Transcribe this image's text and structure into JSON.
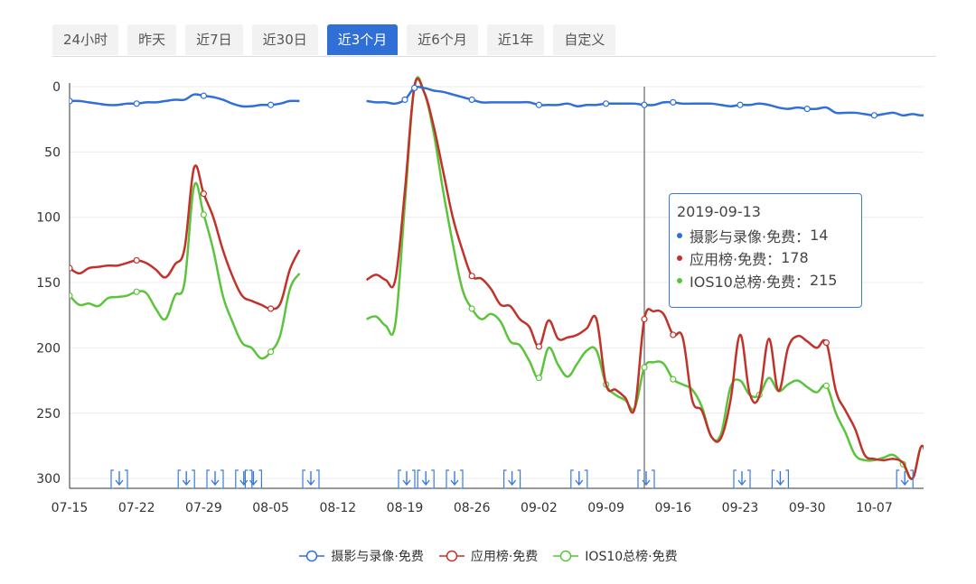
{
  "tabs": [
    {
      "label": "24小时",
      "active": false
    },
    {
      "label": "昨天",
      "active": false
    },
    {
      "label": "近7日",
      "active": false
    },
    {
      "label": "近30日",
      "active": false
    },
    {
      "label": "近3个月",
      "active": true
    },
    {
      "label": "近6个月",
      "active": false
    },
    {
      "label": "近1年",
      "active": false
    },
    {
      "label": "自定义",
      "active": false
    }
  ],
  "tooltip": {
    "date": "2019-09-13",
    "rows": [
      {
        "name": "摄影与录像·免费",
        "sep": "： ",
        "value": "14",
        "color": "#2f6fd6"
      },
      {
        "name": "应用榜·免费",
        "sep": "： ",
        "value": "178",
        "color": "#c1322b"
      },
      {
        "name": "IOS10总榜·免费",
        "sep": "： ",
        "value": "215",
        "color": "#5cc43c"
      }
    ]
  },
  "legend": [
    {
      "label": "摄影与录像·免费",
      "color": "#2f6fd6"
    },
    {
      "label": "应用榜·免费",
      "color": "#c1322b"
    },
    {
      "label": "IOS10总榜·免费",
      "color": "#5cc43c"
    }
  ],
  "chart_data": {
    "type": "line",
    "title": "",
    "xlabel": "",
    "ylabel": "",
    "y_inverted": true,
    "ylim": [
      0,
      307
    ],
    "yticks": [
      0,
      50,
      100,
      150,
      200,
      250,
      300
    ],
    "grid": true,
    "legend_position": "bottom",
    "x_tick_labels": [
      "07-15",
      "07-22",
      "07-29",
      "08-05",
      "08-12",
      "08-19",
      "08-26",
      "09-02",
      "09-09",
      "09-16",
      "09-23",
      "09-30",
      "10-07"
    ],
    "x_start": "07-15",
    "x_days": 91,
    "crosshair_day": 60,
    "update_marker_days": [
      5,
      12,
      15,
      18,
      19,
      25,
      35,
      37,
      40,
      46,
      53,
      60,
      70,
      74,
      87
    ],
    "series": [
      {
        "name": "摄影与录像·免费",
        "color": "#2f6fd6",
        "points": [
          [
            0,
            11
          ],
          [
            1,
            11
          ],
          [
            2,
            12
          ],
          [
            3,
            13
          ],
          [
            4,
            14
          ],
          [
            5,
            14
          ],
          [
            6,
            13
          ],
          [
            7,
            13
          ],
          [
            8,
            12
          ],
          [
            9,
            12
          ],
          [
            10,
            11
          ],
          [
            11,
            10
          ],
          [
            12,
            10
          ],
          [
            13,
            6
          ],
          [
            14,
            7
          ],
          [
            15,
            8
          ],
          [
            16,
            10
          ],
          [
            17,
            13
          ],
          [
            18,
            15
          ],
          [
            19,
            15
          ],
          [
            20,
            14
          ],
          [
            21,
            14
          ],
          [
            22,
            13
          ],
          [
            23,
            11
          ],
          [
            24,
            11
          ],
          [
            31,
            11
          ],
          [
            32,
            12
          ],
          [
            33,
            12
          ],
          [
            34,
            13
          ],
          [
            35,
            10
          ],
          [
            36,
            1
          ],
          [
            37,
            1
          ],
          [
            38,
            3
          ],
          [
            39,
            4
          ],
          [
            40,
            6
          ],
          [
            41,
            8
          ],
          [
            42,
            10
          ],
          [
            43,
            12
          ],
          [
            44,
            12
          ],
          [
            45,
            12
          ],
          [
            46,
            12
          ],
          [
            47,
            12
          ],
          [
            48,
            12
          ],
          [
            49,
            14
          ],
          [
            50,
            14
          ],
          [
            51,
            14
          ],
          [
            52,
            13
          ],
          [
            53,
            15
          ],
          [
            54,
            14
          ],
          [
            55,
            14
          ],
          [
            56,
            13
          ],
          [
            57,
            13
          ],
          [
            58,
            13
          ],
          [
            59,
            13
          ],
          [
            60,
            14
          ],
          [
            61,
            14
          ],
          [
            62,
            12
          ],
          [
            63,
            12
          ],
          [
            64,
            13
          ],
          [
            65,
            13
          ],
          [
            66,
            13
          ],
          [
            67,
            13
          ],
          [
            68,
            14
          ],
          [
            69,
            15
          ],
          [
            70,
            14
          ],
          [
            71,
            14
          ],
          [
            72,
            13
          ],
          [
            73,
            14
          ],
          [
            74,
            16
          ],
          [
            75,
            17
          ],
          [
            76,
            16
          ],
          [
            77,
            17
          ],
          [
            78,
            17
          ],
          [
            79,
            16
          ],
          [
            80,
            20
          ],
          [
            81,
            20
          ],
          [
            82,
            20
          ],
          [
            83,
            21
          ],
          [
            84,
            22
          ],
          [
            85,
            21
          ],
          [
            86,
            20
          ],
          [
            87,
            22
          ],
          [
            88,
            21
          ],
          [
            89,
            22
          ],
          [
            90,
            20
          ],
          [
            91,
            21
          ]
        ],
        "markers": [
          0,
          7,
          14,
          21,
          35,
          36,
          42,
          49,
          56,
          60,
          63,
          70,
          77,
          84
        ]
      },
      {
        "name": "应用榜·免费",
        "color": "#c1322b",
        "points": [
          [
            0,
            139
          ],
          [
            1,
            143
          ],
          [
            2,
            139
          ],
          [
            3,
            138
          ],
          [
            4,
            137
          ],
          [
            5,
            137
          ],
          [
            6,
            135
          ],
          [
            7,
            133
          ],
          [
            8,
            135
          ],
          [
            9,
            140
          ],
          [
            10,
            146
          ],
          [
            11,
            136
          ],
          [
            12,
            124
          ],
          [
            13,
            62
          ],
          [
            14,
            82
          ],
          [
            15,
            100
          ],
          [
            16,
            125
          ],
          [
            17,
            145
          ],
          [
            18,
            160
          ],
          [
            19,
            164
          ],
          [
            20,
            167
          ],
          [
            21,
            170
          ],
          [
            22,
            166
          ],
          [
            23,
            140
          ],
          [
            24,
            125
          ],
          [
            31,
            148
          ],
          [
            32,
            144
          ],
          [
            33,
            148
          ],
          [
            34,
            148
          ],
          [
            35,
            80
          ],
          [
            36,
            0
          ],
          [
            37,
            4
          ],
          [
            38,
            30
          ],
          [
            39,
            65
          ],
          [
            40,
            100
          ],
          [
            41,
            125
          ],
          [
            42,
            145
          ],
          [
            43,
            147
          ],
          [
            44,
            155
          ],
          [
            45,
            167
          ],
          [
            46,
            168
          ],
          [
            47,
            178
          ],
          [
            48,
            184
          ],
          [
            49,
            199
          ],
          [
            50,
            179
          ],
          [
            51,
            193
          ],
          [
            52,
            192
          ],
          [
            53,
            190
          ],
          [
            54,
            185
          ],
          [
            55,
            178
          ],
          [
            56,
            228
          ],
          [
            57,
            232
          ],
          [
            58,
            238
          ],
          [
            59,
            246
          ],
          [
            60,
            178
          ],
          [
            61,
            172
          ],
          [
            62,
            174
          ],
          [
            63,
            190
          ],
          [
            64,
            192
          ],
          [
            65,
            240
          ],
          [
            66,
            248
          ],
          [
            67,
            268
          ],
          [
            68,
            269
          ],
          [
            69,
            240
          ],
          [
            70,
            190
          ],
          [
            71,
            235
          ],
          [
            72,
            237
          ],
          [
            73,
            193
          ],
          [
            74,
            233
          ],
          [
            75,
            200
          ],
          [
            76,
            191
          ],
          [
            77,
            195
          ],
          [
            78,
            200
          ],
          [
            79,
            196
          ],
          [
            80,
            233
          ],
          [
            81,
            248
          ],
          [
            82,
            262
          ],
          [
            83,
            282
          ],
          [
            84,
            285
          ],
          [
            85,
            286
          ],
          [
            86,
            285
          ],
          [
            87,
            288
          ],
          [
            88,
            300
          ],
          [
            89,
            275
          ],
          [
            90,
            300
          ],
          [
            91,
            306
          ]
        ],
        "markers": [
          0,
          7,
          14,
          21,
          42,
          49,
          60,
          63,
          79
        ]
      },
      {
        "name": "IOS10总榜·免费",
        "color": "#5cc43c",
        "points": [
          [
            0,
            160
          ],
          [
            1,
            167
          ],
          [
            2,
            166
          ],
          [
            3,
            168
          ],
          [
            4,
            162
          ],
          [
            5,
            161
          ],
          [
            6,
            160
          ],
          [
            7,
            157
          ],
          [
            8,
            158
          ],
          [
            9,
            170
          ],
          [
            10,
            178
          ],
          [
            11,
            160
          ],
          [
            12,
            150
          ],
          [
            13,
            76
          ],
          [
            14,
            98
          ],
          [
            15,
            125
          ],
          [
            16,
            160
          ],
          [
            17,
            180
          ],
          [
            18,
            196
          ],
          [
            19,
            200
          ],
          [
            20,
            208
          ],
          [
            21,
            203
          ],
          [
            22,
            190
          ],
          [
            23,
            155
          ],
          [
            24,
            143
          ],
          [
            31,
            178
          ],
          [
            32,
            176
          ],
          [
            33,
            183
          ],
          [
            34,
            182
          ],
          [
            35,
            90
          ],
          [
            36,
            0
          ],
          [
            37,
            4
          ],
          [
            38,
            35
          ],
          [
            39,
            80
          ],
          [
            40,
            120
          ],
          [
            41,
            155
          ],
          [
            42,
            170
          ],
          [
            43,
            178
          ],
          [
            44,
            174
          ],
          [
            45,
            180
          ],
          [
            46,
            195
          ],
          [
            47,
            198
          ],
          [
            48,
            210
          ],
          [
            49,
            223
          ],
          [
            50,
            200
          ],
          [
            51,
            213
          ],
          [
            52,
            222
          ],
          [
            53,
            212
          ],
          [
            54,
            202
          ],
          [
            55,
            202
          ],
          [
            56,
            228
          ],
          [
            57,
            236
          ],
          [
            58,
            240
          ],
          [
            59,
            246
          ],
          [
            60,
            215
          ],
          [
            61,
            211
          ],
          [
            62,
            212
          ],
          [
            63,
            224
          ],
          [
            64,
            228
          ],
          [
            65,
            232
          ],
          [
            66,
            245
          ],
          [
            67,
            268
          ],
          [
            68,
            266
          ],
          [
            69,
            230
          ],
          [
            70,
            225
          ],
          [
            71,
            236
          ],
          [
            72,
            236
          ],
          [
            73,
            223
          ],
          [
            74,
            233
          ],
          [
            75,
            228
          ],
          [
            76,
            225
          ],
          [
            77,
            230
          ],
          [
            78,
            234
          ],
          [
            79,
            229
          ],
          [
            80,
            250
          ],
          [
            81,
            265
          ],
          [
            82,
            282
          ],
          [
            83,
            286
          ],
          [
            84,
            286
          ],
          [
            85,
            284
          ],
          [
            86,
            282
          ],
          [
            87,
            289
          ],
          [
            88,
            300
          ],
          [
            89,
            275
          ],
          [
            90,
            300
          ],
          [
            91,
            306
          ]
        ],
        "markers": [
          0,
          7,
          14,
          21,
          42,
          49,
          56,
          60,
          63,
          72,
          79,
          87
        ]
      }
    ]
  }
}
